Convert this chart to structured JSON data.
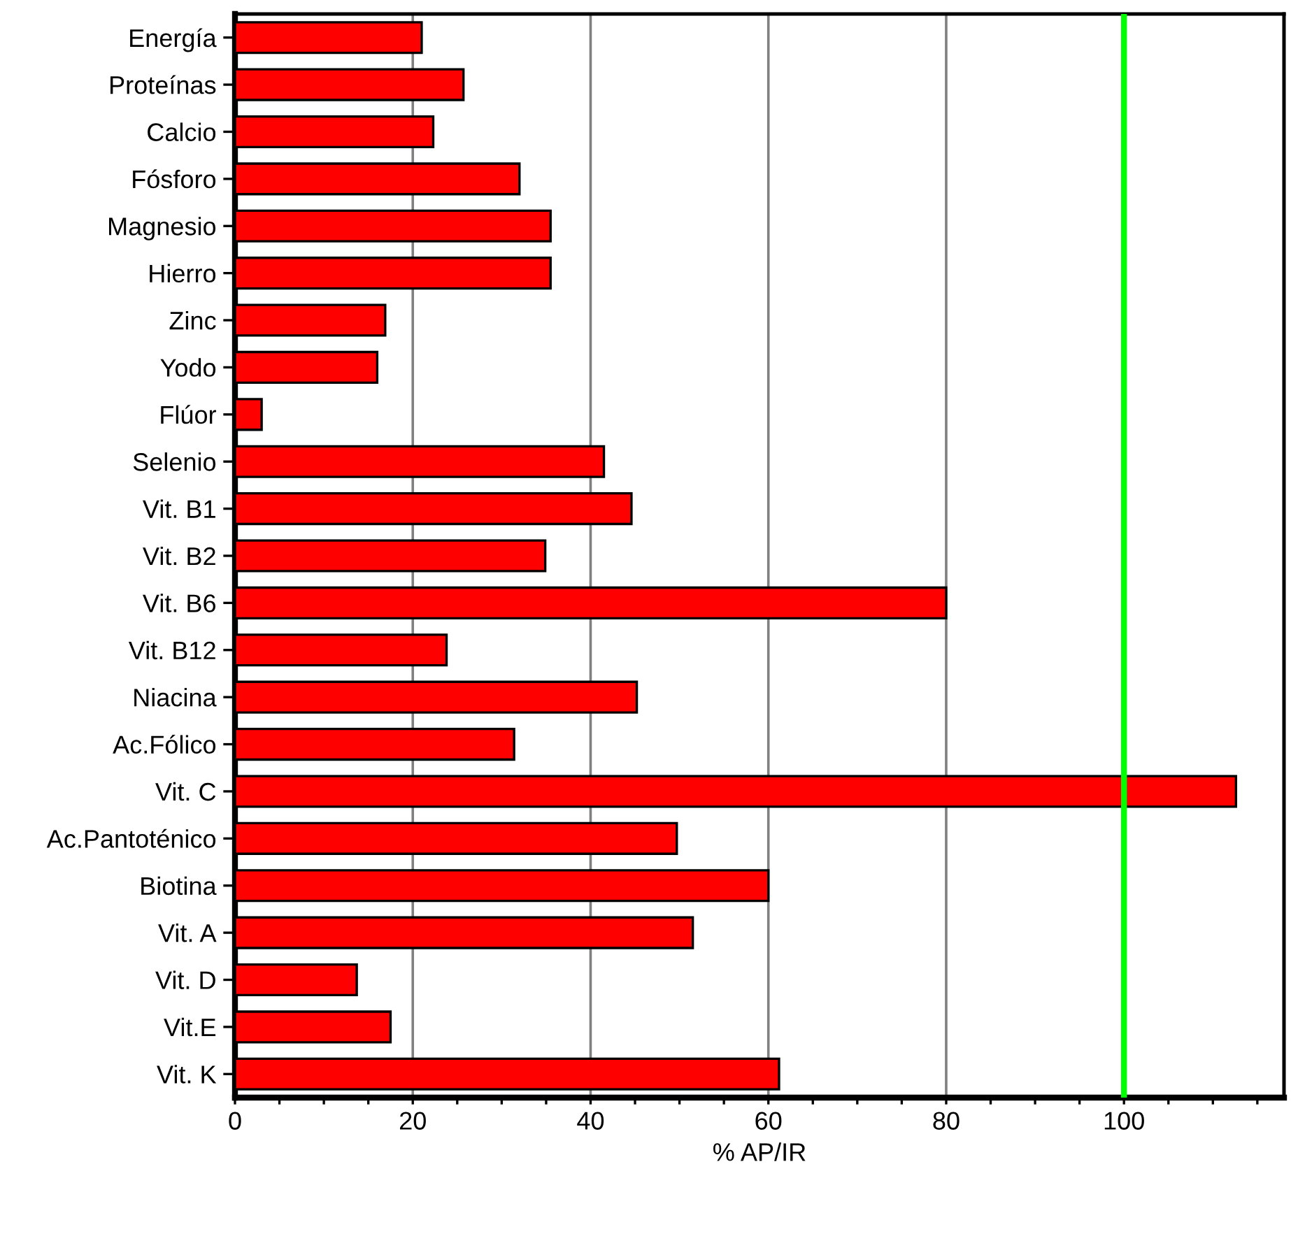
{
  "chart_data": {
    "type": "bar",
    "orientation": "horizontal",
    "xlabel": "% AP/IR",
    "categories": [
      "Energía",
      "Proteínas",
      "Calcio",
      "Fósforo",
      "Magnesio",
      "Hierro",
      "Zinc",
      "Yodo",
      "Flúor",
      "Selenio",
      "Vit. B1",
      "Vit. B2",
      "Vit. B6",
      "Vit. B12",
      "Niacina",
      "Ac.Fólico",
      "Vit. C",
      "Ac.Pantoténico",
      "Biotina",
      "Vit. A",
      "Vit. D",
      "Vit.E",
      "Vit. K"
    ],
    "values": [
      21.0,
      25.7,
      22.3,
      32.0,
      35.5,
      35.5,
      16.9,
      16.0,
      3.0,
      41.5,
      44.6,
      34.9,
      80.0,
      23.8,
      45.2,
      31.4,
      112.6,
      49.7,
      60.0,
      51.5,
      13.7,
      17.5,
      61.2
    ],
    "color": "#ff0000",
    "xlim": [
      0,
      118
    ],
    "xticks": [
      0,
      {
        "value": 5,
        "label": null
      },
      {
        "value": 10,
        "label": null
      },
      {
        "value": 15,
        "label": null
      },
      20,
      {
        "value": 25,
        "label": null
      },
      {
        "value": 30,
        "label": null
      },
      {
        "value": 35,
        "label": null
      },
      40,
      {
        "value": 45,
        "label": null
      },
      {
        "value": 50,
        "label": null
      },
      {
        "value": 55,
        "label": null
      },
      60,
      {
        "value": 65,
        "label": null
      },
      {
        "value": 70,
        "label": null
      },
      {
        "value": 75,
        "label": null
      },
      80,
      {
        "value": 85,
        "label": null
      },
      {
        "value": 90,
        "label": null
      },
      {
        "value": 95,
        "label": null
      },
      100,
      {
        "value": 105,
        "label": null
      },
      {
        "value": 110,
        "label": null
      },
      {
        "value": 115,
        "label": null
      }
    ],
    "grid": "x",
    "ref_lines": [
      {
        "axis": "x",
        "value": 100,
        "color": "#00ff00"
      }
    ]
  }
}
